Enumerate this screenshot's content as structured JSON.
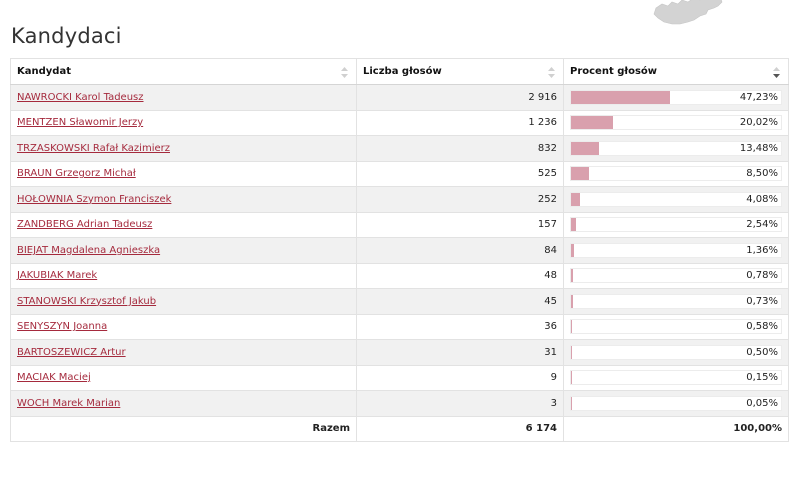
{
  "section_title": "Kandydaci",
  "table": {
    "headers": {
      "candidate": "Kandydat",
      "votes": "Liczba głosów",
      "percent": "Procent głosów"
    },
    "rows": [
      {
        "name": "NAWROCKI Karol Tadeusz",
        "votes": "2 916",
        "percent_label": "47,23%",
        "percent": 47.23
      },
      {
        "name": "MENTZEN Sławomir Jerzy",
        "votes": "1 236",
        "percent_label": "20,02%",
        "percent": 20.02
      },
      {
        "name": "TRZASKOWSKI Rafał Kazimierz",
        "votes": "832",
        "percent_label": "13,48%",
        "percent": 13.48
      },
      {
        "name": "BRAUN Grzegorz Michał",
        "votes": "525",
        "percent_label": "8,50%",
        "percent": 8.5
      },
      {
        "name": "HOŁOWNIA Szymon Franciszek",
        "votes": "252",
        "percent_label": "4,08%",
        "percent": 4.08
      },
      {
        "name": "ZANDBERG Adrian Tadeusz",
        "votes": "157",
        "percent_label": "2,54%",
        "percent": 2.54
      },
      {
        "name": "BIEJAT Magdalena Agnieszka",
        "votes": "84",
        "percent_label": "1,36%",
        "percent": 1.36
      },
      {
        "name": "JAKUBIAK Marek",
        "votes": "48",
        "percent_label": "0,78%",
        "percent": 0.78
      },
      {
        "name": "STANOWSKI Krzysztof Jakub",
        "votes": "45",
        "percent_label": "0,73%",
        "percent": 0.73
      },
      {
        "name": "SENYSZYN Joanna",
        "votes": "36",
        "percent_label": "0,58%",
        "percent": 0.58
      },
      {
        "name": "BARTOSZEWICZ Artur",
        "votes": "31",
        "percent_label": "0,50%",
        "percent": 0.5
      },
      {
        "name": "MACIAK Maciej",
        "votes": "9",
        "percent_label": "0,15%",
        "percent": 0.15
      },
      {
        "name": "WOCH Marek Marian",
        "votes": "3",
        "percent_label": "0,05%",
        "percent": 0.05
      }
    ],
    "footer": {
      "label": "Razem",
      "votes": "6 174",
      "percent": "100,00%"
    }
  },
  "colors": {
    "link": "#a52a3d",
    "bar_fill": "#d9a0ad",
    "row_stripe": "#f1f1f1",
    "map_fill": "#d3d3d3"
  }
}
